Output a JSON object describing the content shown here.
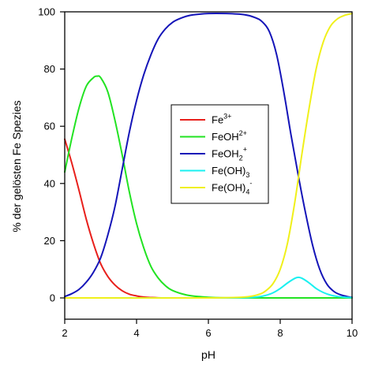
{
  "chart_data": {
    "type": "line",
    "xlabel": "pH",
    "ylabel": "% der gelösten Fe Spezies",
    "xlim": [
      2,
      10
    ],
    "ylim": [
      0,
      100
    ],
    "x_ticks": [
      2,
      4,
      6,
      8,
      10
    ],
    "y_ticks": [
      0,
      20,
      40,
      60,
      80,
      100
    ],
    "grid": false,
    "legend_position": "center-right",
    "series": [
      {
        "name": "Fe3+",
        "label_base": "Fe",
        "label_sup": "3+",
        "label_sub": "",
        "label_sup2": "",
        "color": "#e8201c",
        "x": [
          2.0,
          2.2,
          2.4,
          2.6,
          2.8,
          3.0,
          3.2,
          3.4,
          3.6,
          3.8,
          4.0,
          4.2,
          4.4,
          4.6,
          5.0,
          6.0,
          8.0,
          10.0
        ],
        "y": [
          55.5,
          47.0,
          37.5,
          27.5,
          19.0,
          12.0,
          7.5,
          4.5,
          2.5,
          1.3,
          0.7,
          0.3,
          0.15,
          0.05,
          0,
          0,
          0,
          0
        ]
      },
      {
        "name": "FeOH2+",
        "label_base": "FeOH",
        "label_sup": "2+",
        "label_sub": "",
        "label_sup2": "",
        "color": "#22e322",
        "x": [
          2.0,
          2.2,
          2.4,
          2.6,
          2.8,
          2.9,
          3.0,
          3.2,
          3.4,
          3.6,
          3.8,
          4.0,
          4.2,
          4.4,
          4.6,
          4.8,
          5.0,
          5.4,
          5.8,
          6.2,
          7.0,
          8.0,
          10.0
        ],
        "y": [
          44.0,
          56.0,
          66.5,
          74.0,
          77.0,
          77.5,
          77.0,
          72.0,
          62.0,
          50.0,
          37.0,
          26.0,
          17.5,
          11.0,
          7.0,
          4.3,
          2.6,
          1.0,
          0.4,
          0.1,
          0,
          0,
          0
        ]
      },
      {
        "name": "FeOH2+ (aq)",
        "label_base": "FeOH",
        "label_sup": "",
        "label_sub": "2",
        "label_sup2": "+",
        "color": "#1414b8",
        "x": [
          2.0,
          2.2,
          2.4,
          2.6,
          2.8,
          3.0,
          3.2,
          3.4,
          3.6,
          3.8,
          4.0,
          4.2,
          4.4,
          4.6,
          4.8,
          5.0,
          5.2,
          5.5,
          6.0,
          6.5,
          7.0,
          7.3,
          7.5,
          7.7,
          7.9,
          8.1,
          8.3,
          8.5,
          8.7,
          8.9,
          9.1,
          9.3,
          9.5,
          9.7,
          9.9,
          10.0
        ],
        "y": [
          0.5,
          1.5,
          3.0,
          5.5,
          9.0,
          14.0,
          22.0,
          32.0,
          45.0,
          58.0,
          69.0,
          78.0,
          85.0,
          90.5,
          94.0,
          96.3,
          97.6,
          98.8,
          99.4,
          99.4,
          99.0,
          98.0,
          96.5,
          93.0,
          85.0,
          72.0,
          57.0,
          43.0,
          30.0,
          18.5,
          10.0,
          4.8,
          2.2,
          1.0,
          0.4,
          0.2
        ]
      },
      {
        "name": "Fe(OH)3",
        "label_base": "Fe(OH)",
        "label_sup": "",
        "label_sub": "3",
        "label_sup2": "",
        "color": "#1af0f0",
        "x": [
          2.0,
          6.0,
          7.0,
          7.4,
          7.6,
          7.8,
          8.0,
          8.2,
          8.4,
          8.5,
          8.6,
          8.8,
          9.0,
          9.2,
          9.4,
          9.6,
          9.8,
          10.0
        ],
        "y": [
          0,
          0,
          0.1,
          0.4,
          0.9,
          1.8,
          3.3,
          5.2,
          6.8,
          7.2,
          6.9,
          5.3,
          3.3,
          1.9,
          1.0,
          0.5,
          0.25,
          0.1
        ]
      },
      {
        "name": "Fe(OH)4-",
        "label_base": "Fe(OH)",
        "label_sup": "",
        "label_sub": "4",
        "label_sup2": "-",
        "color": "#f0f01a",
        "x": [
          2.0,
          6.0,
          7.0,
          7.4,
          7.6,
          7.8,
          8.0,
          8.2,
          8.4,
          8.6,
          8.8,
          9.0,
          9.2,
          9.4,
          9.6,
          9.8,
          10.0
        ],
        "y": [
          0,
          0,
          0.3,
          1.2,
          2.5,
          5.0,
          10.0,
          19.0,
          33.0,
          50.0,
          66.0,
          80.0,
          89.5,
          95.0,
          97.6,
          98.8,
          99.4
        ]
      }
    ]
  }
}
